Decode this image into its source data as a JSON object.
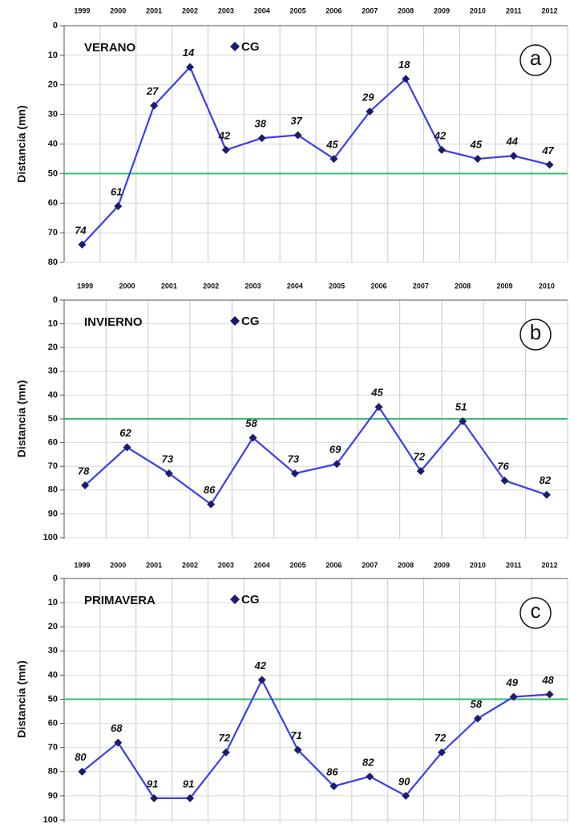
{
  "chart_data": [
    {
      "type": "line",
      "title": "VERANO",
      "panel_label": "a",
      "y_label": "Distancia (mn)",
      "categories": [
        "1999",
        "2000",
        "2001",
        "2002",
        "2003",
        "2004",
        "2005",
        "2006",
        "2007",
        "2008",
        "2009",
        "2010",
        "2011",
        "2012"
      ],
      "series": [
        {
          "name": "CG",
          "color": "#3c3cf0",
          "marker_color": "#1c1c6b",
          "values": [
            74,
            61,
            27,
            14,
            42,
            38,
            37,
            45,
            29,
            18,
            42,
            45,
            44,
            47
          ]
        }
      ],
      "ylim": [
        0,
        80
      ],
      "yticks": [
        0,
        10,
        20,
        30,
        40,
        50,
        60,
        70,
        80
      ],
      "y_inverted": true,
      "reference_line": 50,
      "reference_color": "#2fbf6f",
      "grid": true
    },
    {
      "type": "line",
      "title": "INVIERNO",
      "panel_label": "b",
      "y_label": "Distancia (mn)",
      "categories": [
        "1999",
        "2000",
        "2001",
        "2002",
        "2003",
        "2004",
        "2005",
        "2006",
        "2007",
        "2008",
        "2009",
        "2010"
      ],
      "series": [
        {
          "name": "CG",
          "color": "#3c3cf0",
          "marker_color": "#1c1c6b",
          "values": [
            78,
            62,
            73,
            86,
            58,
            73,
            69,
            45,
            72,
            51,
            76,
            82
          ]
        }
      ],
      "ylim": [
        0,
        100
      ],
      "yticks": [
        0,
        10,
        20,
        30,
        40,
        50,
        60,
        70,
        80,
        90,
        100
      ],
      "y_inverted": true,
      "reference_line": 50,
      "reference_color": "#2fbf6f",
      "grid": true
    },
    {
      "type": "line",
      "title": "PRIMAVERA",
      "panel_label": "c",
      "y_label": "Distancia (mn)",
      "categories": [
        "1999",
        "2000",
        "2001",
        "2002",
        "2003",
        "2004",
        "2005",
        "2006",
        "2007",
        "2008",
        "2009",
        "2010",
        "2011",
        "2012"
      ],
      "series": [
        {
          "name": "CG",
          "color": "#3c3cf0",
          "marker_color": "#1c1c6b",
          "values": [
            80,
            68,
            91,
            91,
            72,
            42,
            71,
            86,
            82,
            90,
            72,
            58,
            49,
            48
          ]
        }
      ],
      "ylim": [
        0,
        100
      ],
      "yticks": [
        0,
        10,
        20,
        30,
        40,
        50,
        60,
        70,
        80,
        90,
        100
      ],
      "y_inverted": true,
      "reference_line": 50,
      "reference_color": "#2fbf6f",
      "grid": true
    }
  ]
}
